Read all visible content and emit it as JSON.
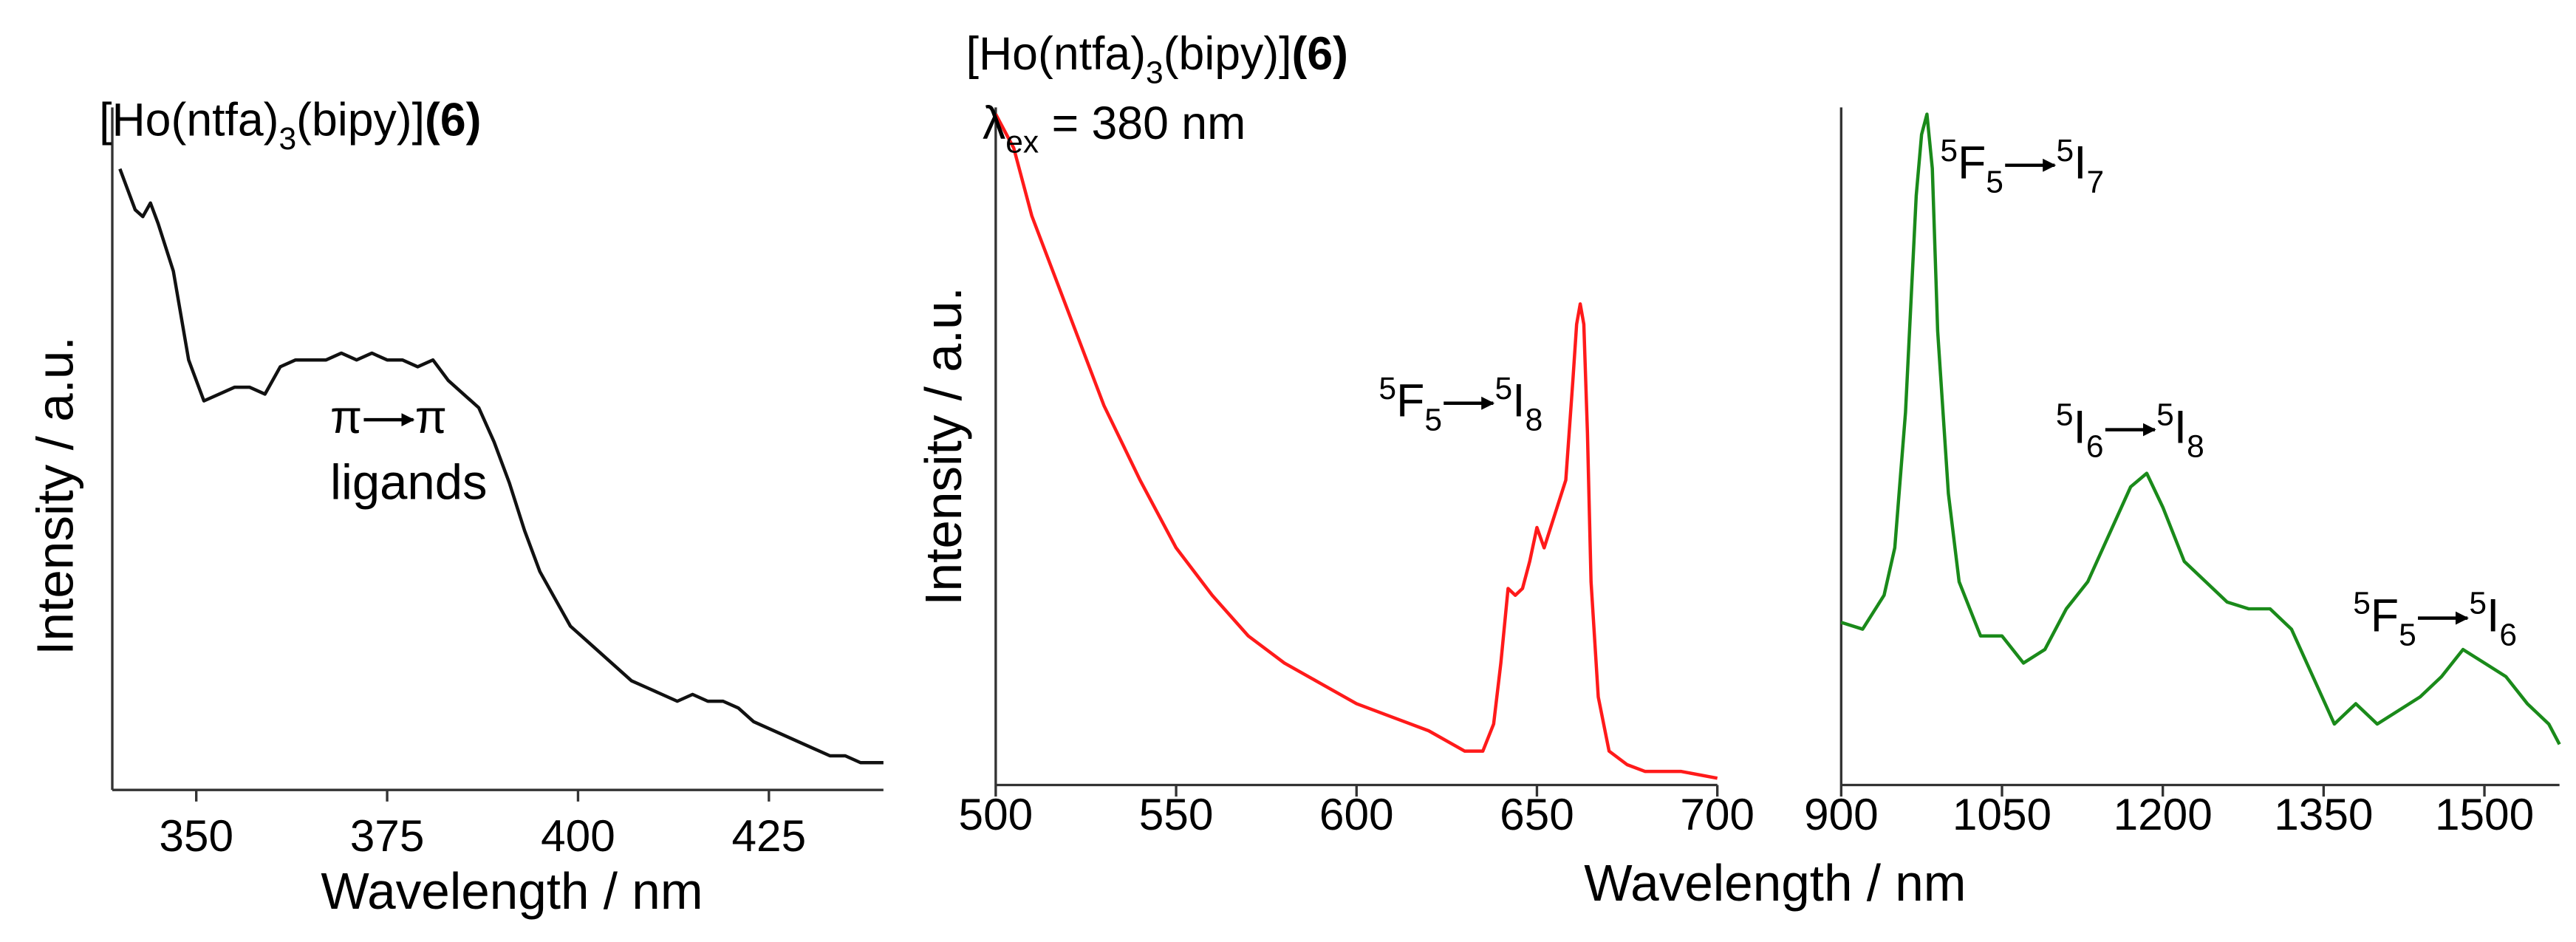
{
  "chart_data": [
    {
      "type": "line",
      "title": [
        "[Ho(ntfa)",
        "3",
        "(bipy)]",
        "(6)"
      ],
      "xlabel": "Wavelength / nm",
      "ylabel": "Intensity / a.u.",
      "color": "#111111",
      "xlim": [
        339,
        440
      ],
      "xticks": [
        350,
        375,
        400,
        425
      ],
      "ylim": [
        0,
        1
      ],
      "x": [
        340,
        342,
        343,
        344,
        345,
        347,
        349,
        351,
        353,
        355,
        357,
        359,
        361,
        363,
        365,
        367,
        369,
        371,
        373,
        375,
        377,
        379,
        381,
        383,
        385,
        387,
        389,
        391,
        393,
        395,
        397,
        399,
        401,
        403,
        405,
        407,
        409,
        411,
        413,
        415,
        417,
        419,
        421,
        423,
        425,
        427,
        429,
        431,
        433,
        435,
        437,
        439,
        440
      ],
      "values": [
        0.91,
        0.85,
        0.84,
        0.86,
        0.83,
        0.76,
        0.63,
        0.57,
        0.58,
        0.59,
        0.59,
        0.58,
        0.62,
        0.63,
        0.63,
        0.63,
        0.64,
        0.63,
        0.64,
        0.63,
        0.63,
        0.62,
        0.63,
        0.6,
        0.58,
        0.56,
        0.51,
        0.45,
        0.38,
        0.32,
        0.28,
        0.24,
        0.22,
        0.2,
        0.18,
        0.16,
        0.15,
        0.14,
        0.13,
        0.14,
        0.13,
        0.13,
        0.12,
        0.1,
        0.09,
        0.08,
        0.07,
        0.06,
        0.05,
        0.05,
        0.04,
        0.04,
        0.04
      ],
      "annotations": [
        {
          "from": [
            "π"
          ],
          "to": [
            "π"
          ]
        },
        {
          "text": "ligands"
        }
      ]
    },
    {
      "type": "line",
      "title": [
        "[Ho(ntfa)",
        "3",
        "(bipy)]",
        "(6)"
      ],
      "subtitle": [
        "λ",
        "ex",
        " = 380 nm"
      ],
      "xlabel": "Wavelength / nm",
      "ylabel": "Intensity / a.u.",
      "color": "#ff1a1a",
      "xlim": [
        500,
        700
      ],
      "xticks": [
        500,
        550,
        600,
        650,
        700
      ],
      "ylim": [
        0,
        1
      ],
      "x": [
        500,
        505,
        510,
        520,
        530,
        540,
        550,
        560,
        570,
        580,
        590,
        600,
        610,
        620,
        630,
        635,
        638,
        640,
        642,
        644,
        646,
        648,
        650,
        652,
        655,
        658,
        660,
        661,
        662,
        663,
        664,
        665,
        667,
        670,
        675,
        680,
        690,
        700
      ],
      "values": [
        0.99,
        0.94,
        0.84,
        0.7,
        0.56,
        0.45,
        0.35,
        0.28,
        0.22,
        0.18,
        0.15,
        0.12,
        0.1,
        0.08,
        0.05,
        0.05,
        0.09,
        0.18,
        0.29,
        0.28,
        0.29,
        0.33,
        0.38,
        0.35,
        0.4,
        0.45,
        0.6,
        0.68,
        0.71,
        0.68,
        0.52,
        0.3,
        0.13,
        0.05,
        0.03,
        0.02,
        0.02,
        0.01
      ],
      "annotations": [
        {
          "from": [
            "5",
            "F",
            "5"
          ],
          "to": [
            "5",
            "I",
            "8"
          ]
        }
      ]
    },
    {
      "type": "line",
      "color": "#1a8a1a",
      "xlim": [
        900,
        1570
      ],
      "xticks": [
        900,
        1050,
        1200,
        1350,
        1500
      ],
      "ylim": [
        0,
        1
      ],
      "x": [
        900,
        920,
        940,
        950,
        960,
        970,
        975,
        980,
        985,
        990,
        1000,
        1010,
        1030,
        1050,
        1070,
        1090,
        1110,
        1130,
        1150,
        1170,
        1185,
        1200,
        1220,
        1240,
        1260,
        1280,
        1300,
        1320,
        1340,
        1360,
        1380,
        1400,
        1420,
        1440,
        1460,
        1480,
        1500,
        1520,
        1540,
        1560,
        1570
      ],
      "values": [
        0.24,
        0.23,
        0.28,
        0.35,
        0.55,
        0.87,
        0.96,
        0.99,
        0.91,
        0.67,
        0.43,
        0.3,
        0.22,
        0.22,
        0.18,
        0.2,
        0.26,
        0.3,
        0.37,
        0.44,
        0.46,
        0.41,
        0.33,
        0.3,
        0.27,
        0.26,
        0.26,
        0.23,
        0.16,
        0.09,
        0.12,
        0.09,
        0.11,
        0.13,
        0.16,
        0.2,
        0.18,
        0.16,
        0.12,
        0.09,
        0.06
      ],
      "annotations": [
        {
          "from": [
            "5",
            "F",
            "5"
          ],
          "to": [
            "5",
            "I",
            "7"
          ]
        },
        {
          "from": [
            "5",
            "I",
            "6"
          ],
          "to": [
            "5",
            "I",
            "8"
          ]
        },
        {
          "from": [
            "5",
            "F",
            "5"
          ],
          "to": [
            "5",
            "I",
            "6"
          ]
        }
      ]
    }
  ]
}
